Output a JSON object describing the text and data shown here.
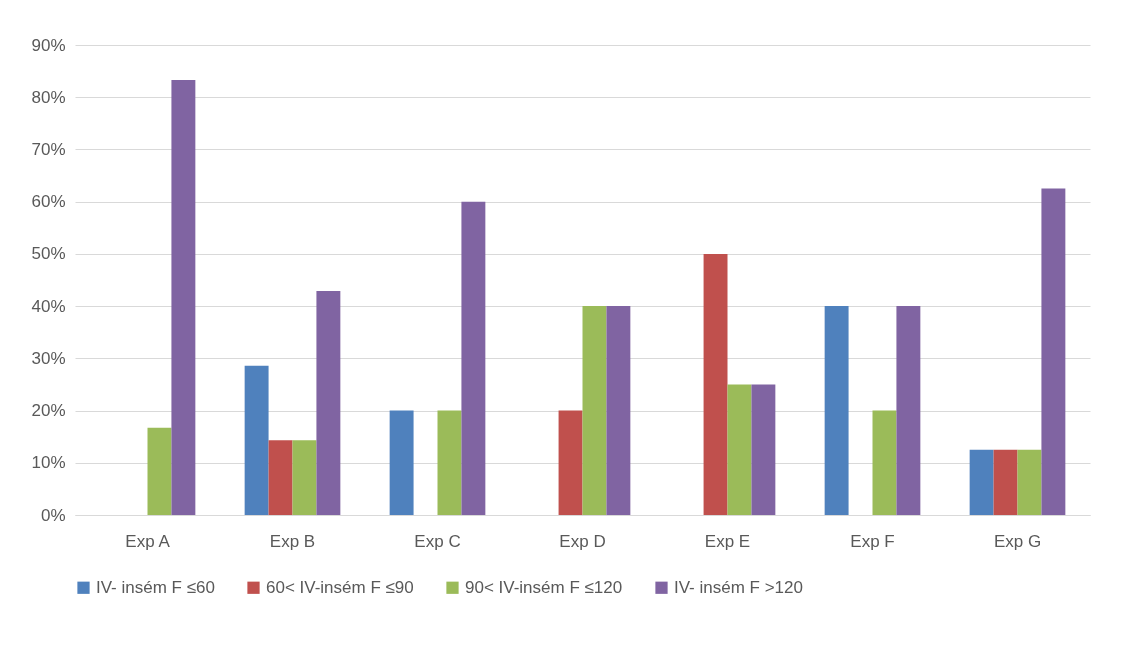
{
  "chart_data": {
    "type": "bar",
    "categories": [
      "Exp A",
      "Exp B",
      "Exp C",
      "Exp D",
      "Exp E",
      "Exp F",
      "Exp G"
    ],
    "series": [
      {
        "name": "IV- insém F ≤60",
        "color": "#4f81bd",
        "values": [
          0,
          28.6,
          20,
          0,
          0,
          40,
          12.5
        ]
      },
      {
        "name": "60< IV-insém F ≤90",
        "color": "#c0504d",
        "values": [
          0,
          14.3,
          0,
          20,
          50,
          0,
          12.5
        ]
      },
      {
        "name": "90< IV-insém F ≤120",
        "color": "#9bbb59",
        "values": [
          16.7,
          14.3,
          20,
          40,
          25,
          20,
          12.5
        ]
      },
      {
        "name": "IV- insém F >120",
        "color": "#8064a2",
        "values": [
          83.3,
          42.9,
          60,
          40,
          25,
          40,
          62.5
        ]
      }
    ],
    "ylim": [
      0,
      90
    ],
    "yticks": [
      {
        "value": 0,
        "label": "0%"
      },
      {
        "value": 10,
        "label": "10%"
      },
      {
        "value": 20,
        "label": "20%"
      },
      {
        "value": 30,
        "label": "30%"
      },
      {
        "value": 40,
        "label": "40%"
      },
      {
        "value": 50,
        "label": "50%"
      },
      {
        "value": 60,
        "label": "60%"
      },
      {
        "value": 70,
        "label": "70%"
      },
      {
        "value": 80,
        "label": "80%"
      },
      {
        "value": 90,
        "label": "90%"
      }
    ],
    "grid": "y",
    "legend": "bottom"
  }
}
